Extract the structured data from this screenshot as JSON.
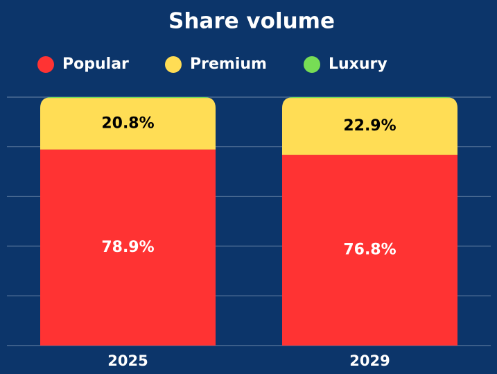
{
  "chart_data": {
    "type": "stacked_bar",
    "title": "Share volume",
    "categories": [
      "2025",
      "2029"
    ],
    "series": [
      {
        "name": "Popular",
        "color": "#ff3333",
        "label_color": "#ffffff",
        "values": [
          78.9,
          76.8
        ],
        "value_labels": [
          "78.9%",
          "76.8%"
        ]
      },
      {
        "name": "Premium",
        "color": "#ffdd55",
        "label_color": "#000000",
        "values": [
          20.8,
          22.9
        ],
        "value_labels": [
          "20.8%",
          "22.9%"
        ]
      },
      {
        "name": "Luxury",
        "color": "#77dd55",
        "values": [
          0.3,
          0.3
        ]
      }
    ],
    "ylim": [
      0,
      100
    ],
    "yticks": [
      0,
      20,
      40,
      60,
      80,
      100
    ],
    "grid": true
  }
}
